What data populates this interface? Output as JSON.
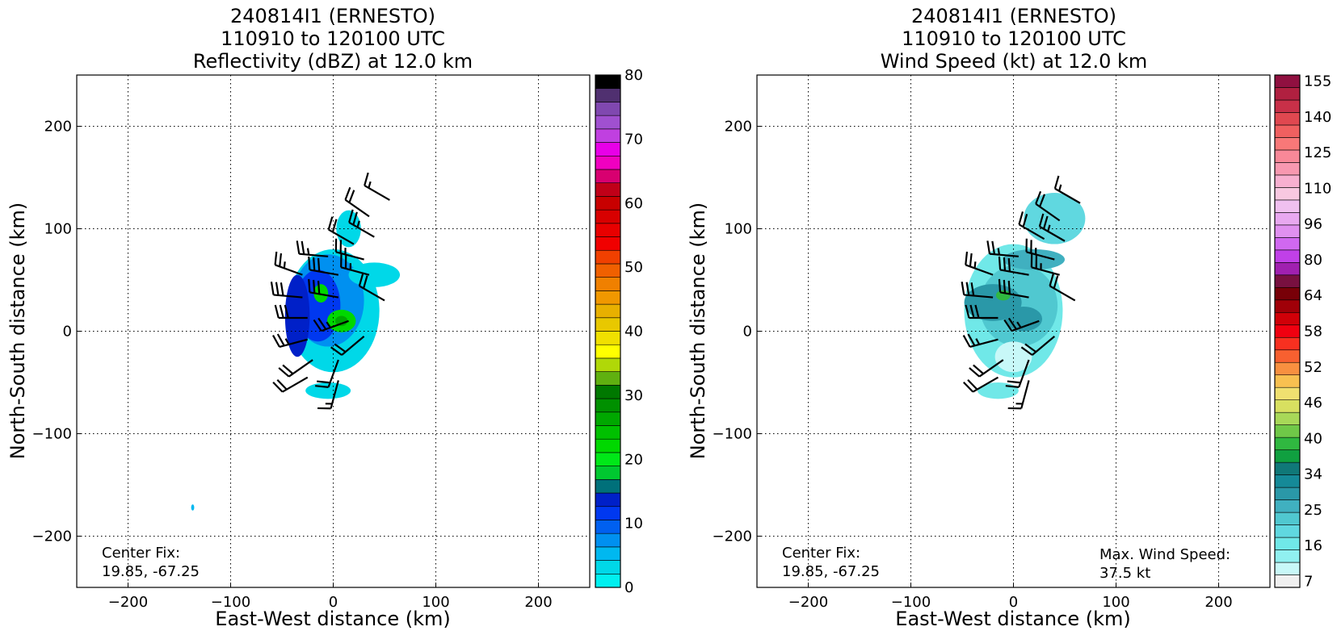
{
  "chart_data": [
    {
      "type": "heatmap",
      "title": [
        "240814I1 (ERNESTO)",
        "110910 to 120100 UTC",
        "Reflectivity (dBZ) at 12.0 km"
      ],
      "xlabel": "East-West distance (km)",
      "ylabel": "North-South distance (km)",
      "xlim": [
        -250,
        250
      ],
      "ylim": [
        -250,
        250
      ],
      "xticks": [
        -200,
        -100,
        0,
        100,
        200
      ],
      "yticks": [
        -200,
        -100,
        0,
        100,
        200
      ],
      "xtick_labels": [
        "−200",
        "−100",
        "0",
        "100",
        "200"
      ],
      "ytick_labels": [
        "−200",
        "−100",
        "0",
        "100",
        "200"
      ],
      "grid": true,
      "colorbar": {
        "min": 0,
        "max": 80,
        "step": 2.5,
        "tick_values": [
          0,
          10,
          20,
          30,
          40,
          50,
          60,
          70,
          80
        ],
        "tick_labels": [
          "0",
          "10",
          "20",
          "30",
          "40",
          "50",
          "60",
          "70",
          "80"
        ],
        "colors": [
          "#00f0f0",
          "#00d8e8",
          "#00b8f0",
          "#0090f0",
          "#0060f0",
          "#0038f0",
          "#0020c8",
          "#00707a",
          "#00c830",
          "#00e818",
          "#00d800",
          "#00c000",
          "#00a800",
          "#009000",
          "#007800",
          "#60b010",
          "#b0d808",
          "#ffff00",
          "#f0e000",
          "#e8c800",
          "#e8b000",
          "#f09800",
          "#f08000",
          "#f06000",
          "#f04000",
          "#f00000",
          "#e80000",
          "#d80000",
          "#c80000",
          "#c00018",
          "#d80070",
          "#f000c0",
          "#e800e8",
          "#c040e0",
          "#a050d0",
          "#8048b0",
          "#503070",
          "#000000"
        ]
      },
      "fields": [
        {
          "name": "main-echo-outer",
          "x": 0,
          "y": 20,
          "rx": 45,
          "ry": 60,
          "value": 2.5
        },
        {
          "name": "main-echo-core",
          "x": -5,
          "y": 30,
          "rx": 35,
          "ry": 45,
          "value": 7.5
        },
        {
          "name": "main-echo-deep",
          "x": -15,
          "y": 25,
          "rx": 22,
          "ry": 35,
          "value": 12.5
        },
        {
          "name": "main-echo-band",
          "x": -35,
          "y": 15,
          "rx": 12,
          "ry": 40,
          "value": 15
        },
        {
          "name": "northeast-band",
          "x": 40,
          "y": 55,
          "rx": 25,
          "ry": 12,
          "value": 2.5
        },
        {
          "name": "north-arm",
          "x": 15,
          "y": 100,
          "rx": 12,
          "ry": 18,
          "value": 2.5
        },
        {
          "name": "south-tail",
          "x": -5,
          "y": -58,
          "rx": 22,
          "ry": 8,
          "value": 2.5
        },
        {
          "name": "convective-cell-1",
          "x": 8,
          "y": 10,
          "rx": 14,
          "ry": 11,
          "value": 25
        },
        {
          "name": "convective-cell-1-peak",
          "x": 8,
          "y": 10,
          "rx": 6,
          "ry": 5,
          "value": 30
        },
        {
          "name": "convective-cell-2",
          "x": -12,
          "y": 37,
          "rx": 7,
          "ry": 9,
          "value": 25
        },
        {
          "name": "isolated-echo",
          "x": -137,
          "y": -172,
          "rx": 1.5,
          "ry": 3,
          "value": 5
        }
      ],
      "wind_barbs": [
        {
          "x": 55,
          "y": 128,
          "dir": 300,
          "speed": 15
        },
        {
          "x": 35,
          "y": 112,
          "dir": 305,
          "speed": 20
        },
        {
          "x": 40,
          "y": 92,
          "dir": 300,
          "speed": 25
        },
        {
          "x": 20,
          "y": 85,
          "dir": 300,
          "speed": 20
        },
        {
          "x": -5,
          "y": 73,
          "dir": 275,
          "speed": 25
        },
        {
          "x": 30,
          "y": 70,
          "dir": 285,
          "speed": 25
        },
        {
          "x": -30,
          "y": 55,
          "dir": 290,
          "speed": 25
        },
        {
          "x": 5,
          "y": 55,
          "dir": 280,
          "speed": 30
        },
        {
          "x": 35,
          "y": 55,
          "dir": 285,
          "speed": 25
        },
        {
          "x": -30,
          "y": 33,
          "dir": 275,
          "speed": 30
        },
        {
          "x": 5,
          "y": 33,
          "dir": 280,
          "speed": 30
        },
        {
          "x": 50,
          "y": 30,
          "dir": 300,
          "speed": 20
        },
        {
          "x": -25,
          "y": 13,
          "dir": 270,
          "speed": 30
        },
        {
          "x": 15,
          "y": 10,
          "dir": 250,
          "speed": 25
        },
        {
          "x": 30,
          "y": -5,
          "dir": 230,
          "speed": 20
        },
        {
          "x": -25,
          "y": -8,
          "dir": 255,
          "speed": 25
        },
        {
          "x": -20,
          "y": -28,
          "dir": 235,
          "speed": 20
        },
        {
          "x": 5,
          "y": -28,
          "dir": 200,
          "speed": 20
        },
        {
          "x": -25,
          "y": -45,
          "dir": 240,
          "speed": 20
        },
        {
          "x": 5,
          "y": -48,
          "dir": 195,
          "speed": 15
        }
      ],
      "annotations": {
        "center_fix_label": "Center Fix:",
        "center_fix_value": "19.85, -67.25"
      }
    },
    {
      "type": "heatmap",
      "title": [
        "240814I1 (ERNESTO)",
        "110910 to 120100 UTC",
        "Wind Speed (kt) at 12.0 km"
      ],
      "xlabel": "East-West distance (km)",
      "ylabel": "North-South distance (km)",
      "xlim": [
        -250,
        250
      ],
      "ylim": [
        -250,
        250
      ],
      "xticks": [
        -200,
        -100,
        0,
        100,
        200
      ],
      "yticks": [
        -200,
        -100,
        0,
        100,
        200
      ],
      "xtick_labels": [
        "−200",
        "−100",
        "0",
        "100",
        "200"
      ],
      "ytick_labels": [
        "−200",
        "−100",
        "0",
        "100",
        "200"
      ],
      "grid": true,
      "colorbar": {
        "tick_labels": [
          "7",
          "16",
          "25",
          "34",
          "40",
          "46",
          "52",
          "58",
          "64",
          "80",
          "96",
          "110",
          "125",
          "140",
          "155"
        ],
        "colors": [
          "#f0f0f0",
          "#c8f8f8",
          "#90f0f0",
          "#70e8e8",
          "#60d8e0",
          "#50c8d0",
          "#40b0c0",
          "#2a98a8",
          "#158a98",
          "#107878",
          "#10a040",
          "#30b840",
          "#70c848",
          "#a8d858",
          "#d8e060",
          "#f0e070",
          "#f8c050",
          "#f89040",
          "#f86030",
          "#f83020",
          "#f00010",
          "#d00008",
          "#a00008",
          "#780008",
          "#781040",
          "#a020b0",
          "#c040e8",
          "#d068f0",
          "#e090f0",
          "#e8a8f0",
          "#f0c0f0",
          "#f8c8e0",
          "#f8b0d0",
          "#f898b0",
          "#f88898",
          "#f87878",
          "#f06060",
          "#e04850",
          "#c83048",
          "#b02040",
          "#901040"
        ]
      },
      "fields": [
        {
          "name": "wind-outer",
          "x": 0,
          "y": 20,
          "rx": 48,
          "ry": 65,
          "value": 14
        },
        {
          "name": "wind-north-arm",
          "x": 40,
          "y": 110,
          "rx": 30,
          "ry": 25,
          "value": 16
        },
        {
          "name": "wind-inner",
          "x": 5,
          "y": 25,
          "rx": 38,
          "ry": 40,
          "value": 20
        },
        {
          "name": "wind-northwest-band",
          "x": 20,
          "y": 70,
          "rx": 30,
          "ry": 10,
          "value": 22
        },
        {
          "name": "wind-max-band",
          "x": -20,
          "y": 28,
          "rx": 28,
          "ry": 18,
          "value": 26
        },
        {
          "name": "wind-east-patch",
          "x": 10,
          "y": 12,
          "rx": 18,
          "ry": 12,
          "value": 25
        },
        {
          "name": "wind-south-weak",
          "x": 0,
          "y": -25,
          "rx": 18,
          "ry": 15,
          "value": 8
        },
        {
          "name": "wind-center-max",
          "x": -10,
          "y": 35,
          "rx": 7,
          "ry": 5,
          "value": 36
        },
        {
          "name": "wind-south-tail",
          "x": -15,
          "y": -58,
          "rx": 20,
          "ry": 8,
          "value": 12
        }
      ],
      "wind_barbs": [
        {
          "x": 65,
          "y": 125,
          "dir": 300,
          "speed": 15
        },
        {
          "x": 45,
          "y": 108,
          "dir": 305,
          "speed": 20
        },
        {
          "x": 50,
          "y": 88,
          "dir": 300,
          "speed": 25
        },
        {
          "x": 30,
          "y": 90,
          "dir": 300,
          "speed": 20
        },
        {
          "x": 5,
          "y": 73,
          "dir": 275,
          "speed": 25
        },
        {
          "x": 40,
          "y": 70,
          "dir": 285,
          "speed": 25
        },
        {
          "x": -20,
          "y": 55,
          "dir": 290,
          "speed": 25
        },
        {
          "x": 15,
          "y": 55,
          "dir": 280,
          "speed": 30
        },
        {
          "x": 45,
          "y": 55,
          "dir": 285,
          "speed": 25
        },
        {
          "x": -20,
          "y": 33,
          "dir": 275,
          "speed": 30
        },
        {
          "x": 15,
          "y": 33,
          "dir": 280,
          "speed": 30
        },
        {
          "x": 60,
          "y": 30,
          "dir": 300,
          "speed": 20
        },
        {
          "x": -15,
          "y": 13,
          "dir": 270,
          "speed": 30
        },
        {
          "x": 25,
          "y": 10,
          "dir": 250,
          "speed": 25
        },
        {
          "x": 40,
          "y": -5,
          "dir": 230,
          "speed": 20
        },
        {
          "x": -15,
          "y": -8,
          "dir": 255,
          "speed": 25
        },
        {
          "x": -10,
          "y": -28,
          "dir": 235,
          "speed": 20
        },
        {
          "x": 15,
          "y": -28,
          "dir": 200,
          "speed": 20
        },
        {
          "x": -15,
          "y": -45,
          "dir": 240,
          "speed": 20
        },
        {
          "x": 15,
          "y": -48,
          "dir": 195,
          "speed": 15
        }
      ],
      "annotations": {
        "center_fix_label": "Center Fix:",
        "center_fix_value": "19.85, -67.25",
        "max_wind_label": "Max. Wind Speed:",
        "max_wind_value": "37.5 kt"
      }
    }
  ]
}
